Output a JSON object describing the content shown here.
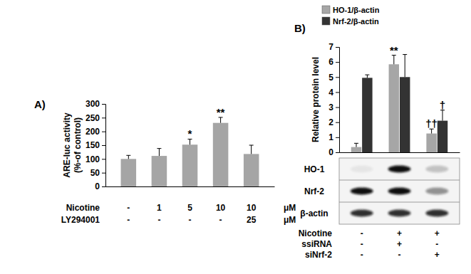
{
  "chart_data": [
    {
      "type": "bar",
      "title": "A)",
      "ylabel": [
        "ARE-luc activity",
        "(%-of control)"
      ],
      "categories": [
        null,
        null,
        null,
        null,
        null
      ],
      "values": [
        100,
        111,
        152,
        231,
        118
      ],
      "errors": [
        13,
        27,
        20,
        20,
        32
      ],
      "annotations": [
        null,
        null,
        "*",
        "**",
        null
      ],
      "color": "#a5a5a5",
      "ylim": [
        0,
        300
      ],
      "yticks": [
        0,
        50,
        100,
        150,
        200,
        250,
        300
      ],
      "grid": false,
      "treatments": [
        {
          "name": "Nicotine",
          "labels": [
            "-",
            "1",
            "5",
            "10",
            "10"
          ],
          "unit": "μM"
        },
        {
          "name": "LY294001",
          "labels": [
            "-",
            "-",
            "-",
            "-",
            "25"
          ],
          "unit": "μM"
        }
      ]
    },
    {
      "type": "bar",
      "title": "B)",
      "ylabel": "Relative protein level",
      "categories": [
        null,
        null,
        null
      ],
      "series": [
        {
          "name": "HO-1/β-actin",
          "color": "#a6a6a6",
          "values": [
            0.35,
            5.85,
            1.25
          ],
          "errors": [
            0.25,
            0.6,
            0.3
          ],
          "annotations": [
            null,
            "**",
            "††"
          ]
        },
        {
          "name": "Nrf-2/β-actin",
          "color": "#333333",
          "values": [
            4.95,
            5.0,
            2.1
          ],
          "errors": [
            0.2,
            1.5,
            0.7
          ],
          "annotations": [
            null,
            null,
            "†"
          ]
        }
      ],
      "ylim": [
        0,
        7
      ],
      "yticks": [
        0,
        1,
        2,
        3,
        4,
        5,
        6,
        7
      ],
      "grid": false,
      "legend": "top",
      "blot_labels": [
        "HO-1",
        "Nrf-2",
        "β-actin"
      ],
      "treatments": [
        {
          "name": "Nicotine",
          "labels": [
            "-",
            "+",
            "+"
          ]
        },
        {
          "name": "ssiRNA",
          "labels": [
            "-",
            "+",
            "-"
          ]
        },
        {
          "name": "siNrf-2",
          "labels": [
            "-",
            "-",
            "+"
          ]
        }
      ]
    }
  ]
}
